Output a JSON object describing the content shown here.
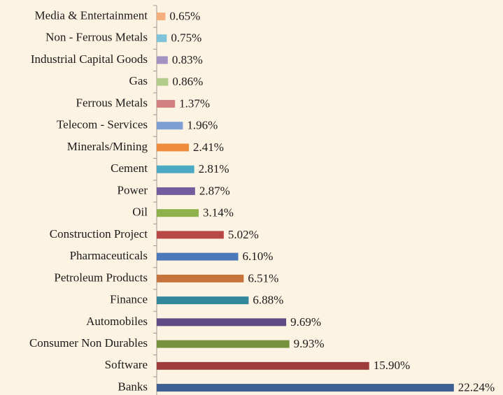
{
  "chart_data": {
    "type": "barh",
    "categories": [
      "Media & Entertainment",
      "Non - Ferrous Metals",
      "Industrial Capital Goods",
      "Gas",
      "Ferrous Metals",
      "Telecom - Services",
      "Minerals/Mining",
      "Cement",
      "Power",
      "Oil",
      "Construction Project",
      "Pharmaceuticals",
      "Petroleum Products",
      "Finance",
      "Automobiles",
      "Consumer Non Durables",
      "Software",
      "Banks"
    ],
    "values": [
      0.65,
      0.75,
      0.83,
      0.86,
      1.37,
      1.96,
      2.41,
      2.81,
      2.87,
      3.14,
      5.02,
      6.1,
      6.51,
      6.88,
      9.69,
      9.93,
      15.9,
      22.24
    ],
    "value_labels": [
      "0.65%",
      "0.75%",
      "0.83%",
      "0.86%",
      "1.37%",
      "1.96%",
      "2.41%",
      "2.81%",
      "2.87%",
      "3.14%",
      "5.02%",
      "6.10%",
      "6.51%",
      "6.88%",
      "9.69%",
      "9.93%",
      "15.90%",
      "22.24%"
    ],
    "colors": [
      "#f5ae7e",
      "#7fc3da",
      "#a393c3",
      "#b2cd8b",
      "#d27f7f",
      "#7f9ed2",
      "#ef8c3c",
      "#4aaac4",
      "#725d9e",
      "#8db24c",
      "#b84848",
      "#4a78b8",
      "#c5733a",
      "#33879c",
      "#5f4a86",
      "#76923c",
      "#9e3b3b",
      "#3d5f92"
    ],
    "xlim": [
      0,
      26
    ]
  }
}
